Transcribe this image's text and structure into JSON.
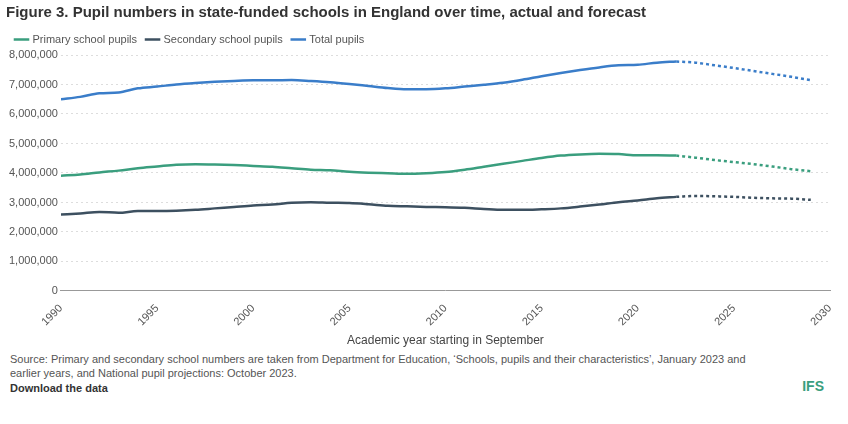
{
  "chart_data": {
    "type": "line",
    "title": "Figure 3. Pupil numbers in state-funded schools in England over time, actual and forecast",
    "x_label": "Academic year starting in September",
    "source": "Source: Primary and secondary school numbers are taken from Department for Education, ‘Schools, pupils and their characteristics’, January 2023 and earlier years, and National pupil projections: October 2023.",
    "link_text": "Download the data",
    "logo_text": "IFS",
    "legend": "top-left",
    "grid": true,
    "xlim": [
      1990,
      2030
    ],
    "xticks": [
      1990,
      1995,
      2000,
      2005,
      2010,
      2015,
      2020,
      2025,
      2030
    ],
    "ylim": [
      0,
      8000000
    ],
    "yticks": [
      0,
      {
        "value": 1000000,
        "label": "1,000,000"
      },
      {
        "value": 2000000,
        "label": "2,000,000"
      },
      {
        "value": 3000000,
        "label": "3,000,000"
      },
      {
        "value": 4000000,
        "label": "4,000,000"
      },
      {
        "value": 5000000,
        "label": "5,000,000"
      },
      {
        "value": 6000000,
        "label": "6,000,000"
      },
      {
        "value": 7000000,
        "label": "7,000,000"
      },
      {
        "value": 8000000,
        "label": "8,000,000"
      }
    ],
    "series": [
      {
        "name": "Primary school pupils",
        "color": "#3a9e7e",
        "line_style": "solid",
        "x": [
          1990,
          1991,
          1992,
          1993,
          1994,
          1995,
          1996,
          1997,
          1998,
          1999,
          2000,
          2001,
          2002,
          2003,
          2004,
          2005,
          2006,
          2007,
          2008,
          2009,
          2010,
          2011,
          2012,
          2013,
          2014,
          2015,
          2016,
          2017,
          2018,
          2019,
          2020,
          2021,
          2022
        ],
        "values": [
          3910000,
          3950000,
          4020000,
          4080000,
          4160000,
          4220000,
          4280000,
          4300000,
          4290000,
          4270000,
          4240000,
          4210000,
          4160000,
          4110000,
          4090000,
          4040000,
          4010000,
          3990000,
          3970000,
          3990000,
          4030000,
          4110000,
          4210000,
          4310000,
          4410000,
          4510000,
          4590000,
          4630000,
          4650000,
          4640000,
          4600000,
          4600000,
          4590000
        ]
      },
      {
        "name": "Secondary school pupils",
        "color": "#3d5060",
        "line_style": "solid",
        "x": [
          1990,
          1991,
          1992,
          1993,
          1994,
          1995,
          1996,
          1997,
          1998,
          1999,
          2000,
          2001,
          2002,
          2003,
          2004,
          2005,
          2006,
          2007,
          2008,
          2009,
          2010,
          2011,
          2012,
          2013,
          2014,
          2015,
          2016,
          2017,
          2018,
          2019,
          2020,
          2021,
          2022
        ],
        "values": [
          2590000,
          2630000,
          2680000,
          2650000,
          2710000,
          2710000,
          2720000,
          2750000,
          2800000,
          2850000,
          2900000,
          2930000,
          2990000,
          3010000,
          2990000,
          2980000,
          2940000,
          2890000,
          2870000,
          2850000,
          2840000,
          2820000,
          2780000,
          2750000,
          2750000,
          2770000,
          2800000,
          2860000,
          2930000,
          3010000,
          3070000,
          3140000,
          3190000
        ]
      },
      {
        "name": "Total pupils",
        "color": "#3a7dc9",
        "line_style": "solid",
        "x": [
          1990,
          1991,
          1992,
          1993,
          1994,
          1995,
          1996,
          1997,
          1998,
          1999,
          2000,
          2001,
          2002,
          2003,
          2004,
          2005,
          2006,
          2007,
          2008,
          2009,
          2010,
          2011,
          2012,
          2013,
          2014,
          2015,
          2016,
          2017,
          2018,
          2019,
          2020,
          2021,
          2022
        ],
        "values": [
          6500000,
          6580000,
          6700000,
          6730000,
          6870000,
          6930000,
          7000000,
          7050000,
          7090000,
          7120000,
          7140000,
          7140000,
          7150000,
          7120000,
          7080000,
          7020000,
          6950000,
          6880000,
          6840000,
          6840000,
          6870000,
          6930000,
          6990000,
          7060000,
          7160000,
          7280000,
          7390000,
          7490000,
          7580000,
          7650000,
          7670000,
          7740000,
          7780000
        ]
      },
      {
        "name": "Primary school pupils",
        "color": "#3a9e7e",
        "line_style": "dotted",
        "x": [
          2022,
          2023,
          2024,
          2025,
          2026,
          2027,
          2028,
          2029
        ],
        "values": [
          4590000,
          4520000,
          4440000,
          4370000,
          4300000,
          4220000,
          4130000,
          4060000
        ]
      },
      {
        "name": "Secondary school pupils",
        "color": "#3d5060",
        "line_style": "dotted",
        "x": [
          2022,
          2023,
          2024,
          2025,
          2026,
          2027,
          2028,
          2029
        ],
        "values": [
          3190000,
          3220000,
          3210000,
          3190000,
          3160000,
          3140000,
          3130000,
          3090000
        ]
      },
      {
        "name": "Total pupils",
        "color": "#3a7dc9",
        "line_style": "dotted",
        "x": [
          2022,
          2023,
          2024,
          2025,
          2026,
          2027,
          2028,
          2029
        ],
        "values": [
          7780000,
          7740000,
          7650000,
          7560000,
          7460000,
          7360000,
          7260000,
          7150000
        ]
      }
    ]
  }
}
